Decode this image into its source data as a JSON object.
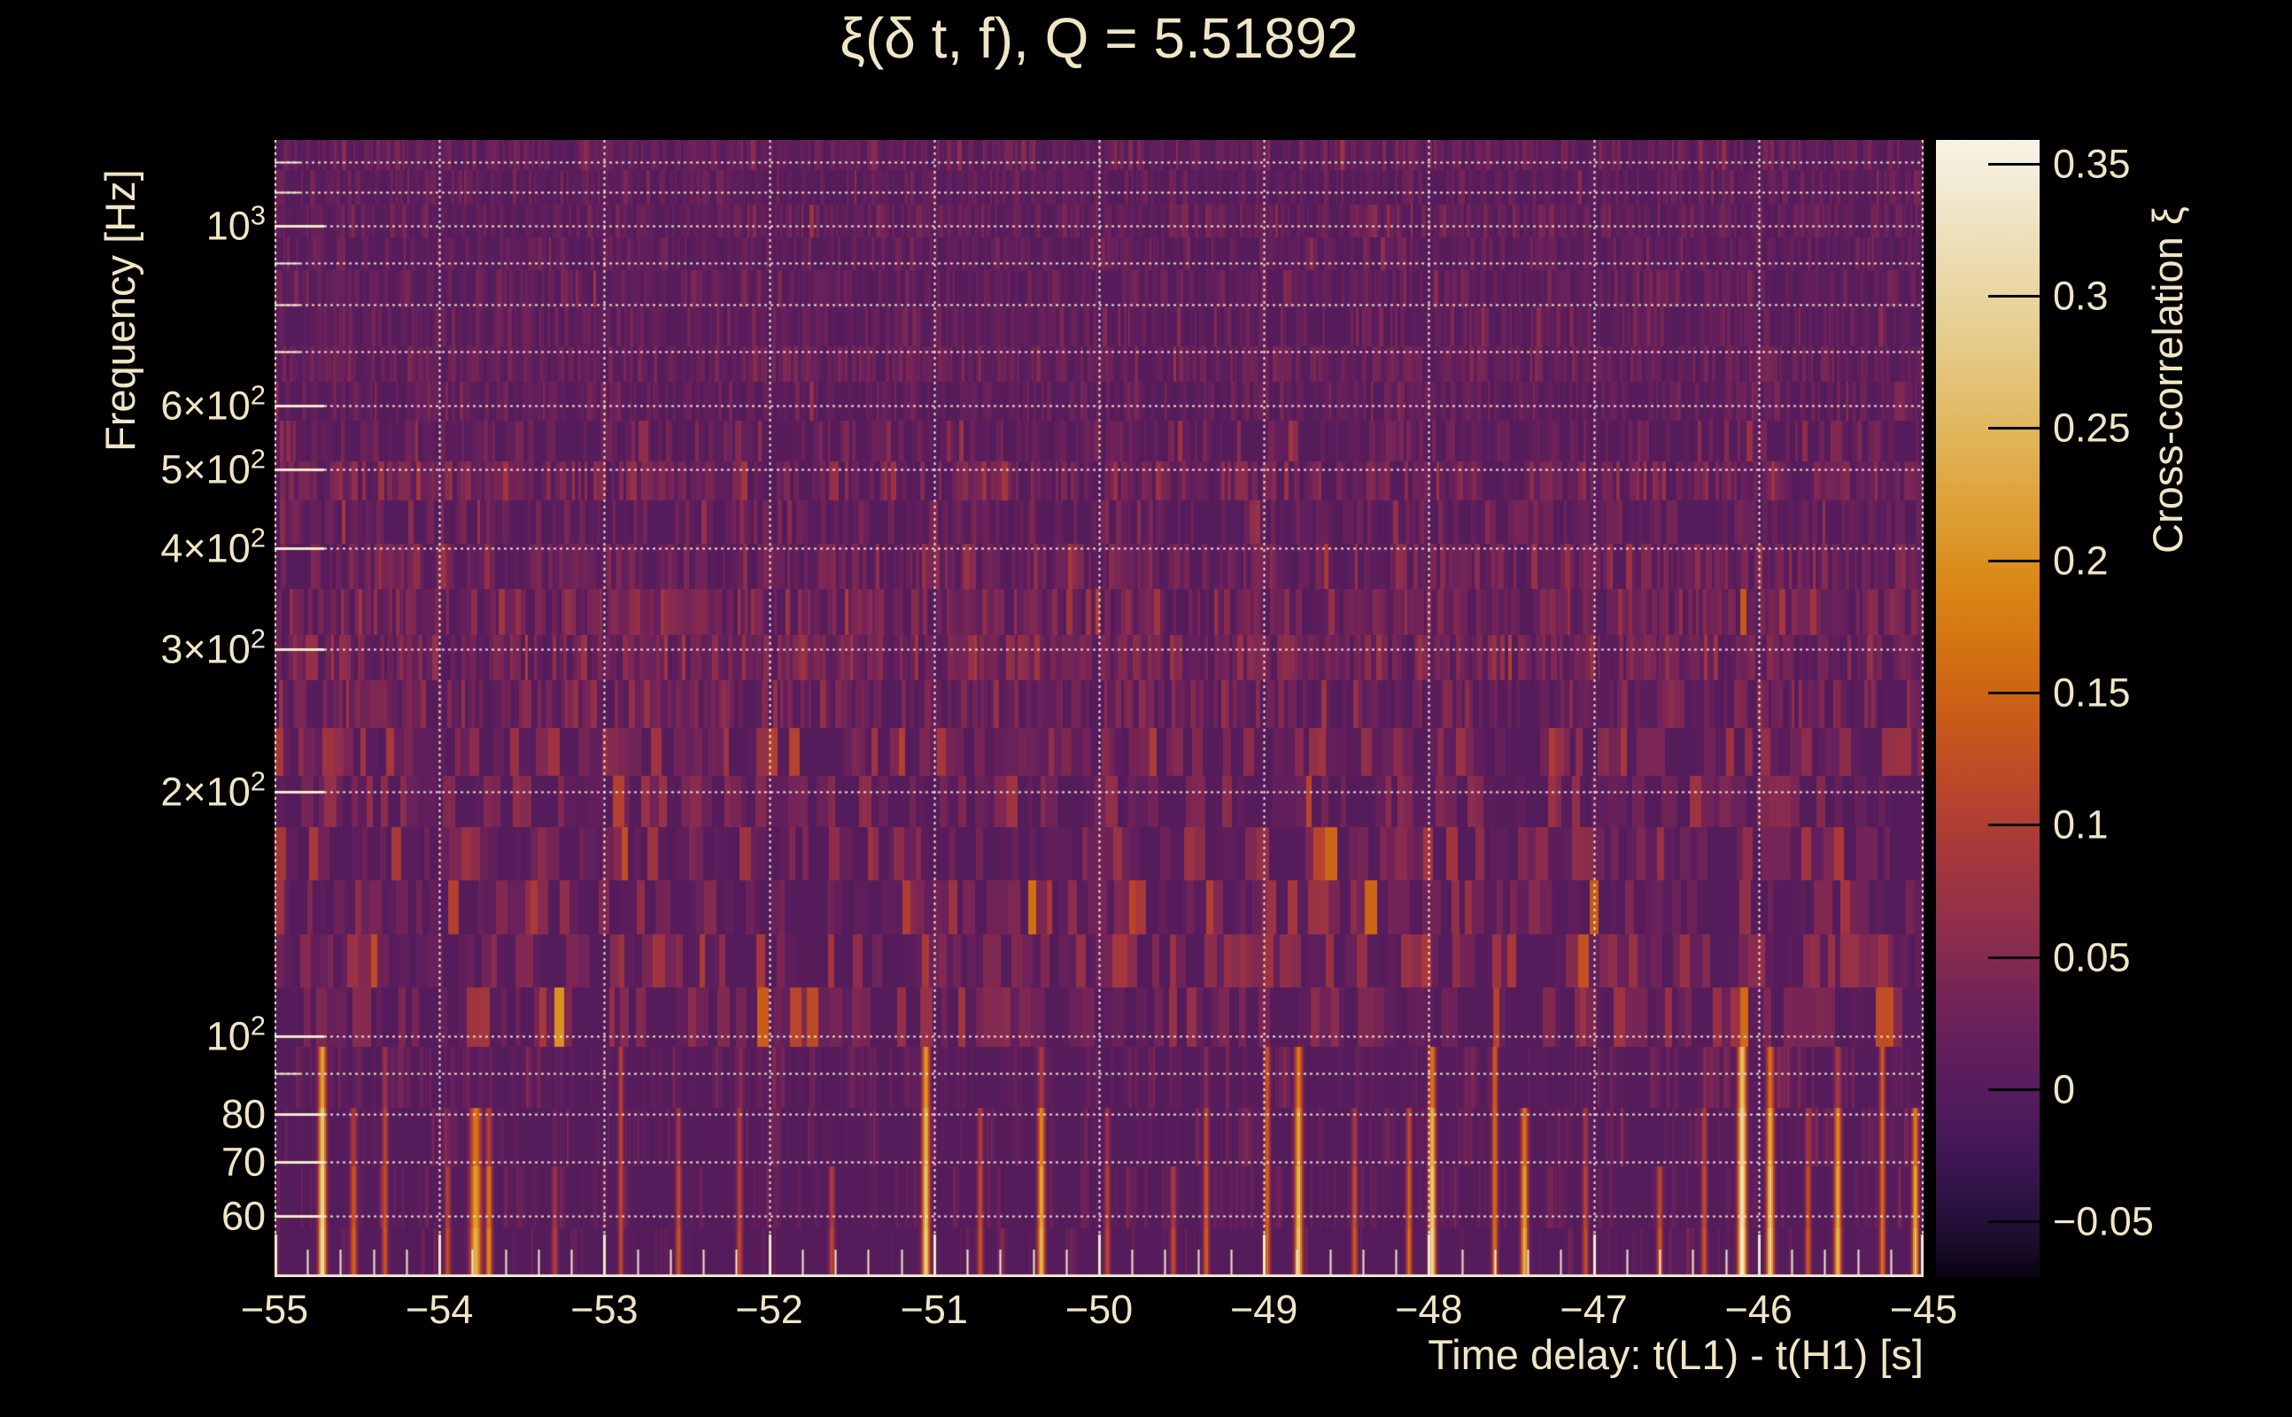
{
  "figure": {
    "background_color": "#000000",
    "text_color": "#f0e6c6",
    "grid_color": "#f5eed4",
    "axis_color": "#f2e8cc"
  },
  "chart_data": {
    "type": "heatmap",
    "title": "ξ(δ t, f), Q = 5.51892",
    "q_value": 5.51892,
    "xlabel": "Time delay: t(L1) - t(H1) [s]",
    "ylabel": "Frequency [Hz]",
    "colorbar_label": "Cross-correlation ξ",
    "x_range": [
      -55,
      -45
    ],
    "x_ticks": [
      {
        "t": -55,
        "label": "−55"
      },
      {
        "t": -54,
        "label": "−54"
      },
      {
        "t": -53,
        "label": "−53"
      },
      {
        "t": -52,
        "label": "−52"
      },
      {
        "t": -51,
        "label": "−51"
      },
      {
        "t": -50,
        "label": "−50"
      },
      {
        "t": -49,
        "label": "−49"
      },
      {
        "t": -48,
        "label": "−48"
      },
      {
        "t": -47,
        "label": "−47"
      },
      {
        "t": -46,
        "label": "−46"
      },
      {
        "t": -45,
        "label": "−45"
      }
    ],
    "x_minor_tick_step": 0.2,
    "y_scale": "log",
    "y_range_hz": [
      50.4,
      1277
    ],
    "y_ticks": [
      {
        "f": 1000,
        "prefix": "",
        "base": "10",
        "exp": "3"
      },
      {
        "f": 600,
        "prefix": "6×",
        "base": "10",
        "exp": "2"
      },
      {
        "f": 500,
        "prefix": "5×",
        "base": "10",
        "exp": "2"
      },
      {
        "f": 400,
        "prefix": "4×",
        "base": "10",
        "exp": "2"
      },
      {
        "f": 300,
        "prefix": "3×",
        "base": "10",
        "exp": "2"
      },
      {
        "f": 200,
        "prefix": "2×",
        "base": "10",
        "exp": "2"
      },
      {
        "f": 100,
        "prefix": "",
        "base": "10",
        "exp": "2"
      },
      {
        "f": 80,
        "prefix": "80",
        "base": "",
        "exp": ""
      },
      {
        "f": 70,
        "prefix": "70",
        "base": "",
        "exp": ""
      },
      {
        "f": 60,
        "prefix": "60",
        "base": "",
        "exp": ""
      }
    ],
    "y_minor_tick_freqs": [
      90,
      700,
      800,
      900,
      1100,
      1200
    ],
    "gridline_freqs": [
      60,
      70,
      80,
      90,
      100,
      200,
      300,
      400,
      500,
      600,
      700,
      800,
      900,
      1000,
      1100,
      1200
    ],
    "colorbar_range": [
      -0.071,
      0.359
    ],
    "colorbar_ticks": [
      {
        "v": 0.35,
        "label": "0.35"
      },
      {
        "v": 0.3,
        "label": "0.3"
      },
      {
        "v": 0.25,
        "label": "0.25"
      },
      {
        "v": 0.2,
        "label": "0.2"
      },
      {
        "v": 0.15,
        "label": "0.15"
      },
      {
        "v": 0.1,
        "label": "0.1"
      },
      {
        "v": 0.05,
        "label": "0.05"
      },
      {
        "v": 0.0,
        "label": "0"
      },
      {
        "v": -0.05,
        "label": "−0.05"
      }
    ],
    "colormap_stops": [
      [
        -0.071,
        "#0a0414"
      ],
      [
        -0.05,
        "#241039"
      ],
      [
        -0.03,
        "#3a1551"
      ],
      [
        -0.01,
        "#4e1a5b"
      ],
      [
        0.015,
        "#611f5c"
      ],
      [
        0.04,
        "#7a2655"
      ],
      [
        0.065,
        "#93304a"
      ],
      [
        0.09,
        "#a8383b"
      ],
      [
        0.115,
        "#bb472a"
      ],
      [
        0.14,
        "#ca5a19"
      ],
      [
        0.165,
        "#d37111"
      ],
      [
        0.19,
        "#da8717"
      ],
      [
        0.215,
        "#dd9c30"
      ],
      [
        0.24,
        "#e0b050"
      ],
      [
        0.265,
        "#e3c172"
      ],
      [
        0.29,
        "#e7d094"
      ],
      [
        0.315,
        "#ecdcb2"
      ],
      [
        0.34,
        "#f2e9d2"
      ],
      [
        0.359,
        "#f7f3e6"
      ]
    ],
    "bright_streaks": [
      [
        -54.71,
        0.34,
        105,
        0.016
      ],
      [
        -54.52,
        0.17,
        80,
        0.014
      ],
      [
        -54.33,
        0.15,
        95,
        0.012
      ],
      [
        -53.95,
        0.14,
        75,
        0.012
      ],
      [
        -53.78,
        0.26,
        85,
        0.024
      ],
      [
        -53.7,
        0.22,
        78,
        0.014
      ],
      [
        -53.3,
        0.12,
        70,
        0.012
      ],
      [
        -52.9,
        0.13,
        150,
        0.01
      ],
      [
        -52.55,
        0.15,
        80,
        0.012
      ],
      [
        -52.18,
        0.13,
        90,
        0.012
      ],
      [
        -51.62,
        0.13,
        75,
        0.012
      ],
      [
        -51.05,
        0.3,
        110,
        0.016
      ],
      [
        -50.72,
        0.15,
        85,
        0.012
      ],
      [
        -50.35,
        0.27,
        90,
        0.015
      ],
      [
        -49.95,
        0.13,
        80,
        0.012
      ],
      [
        -49.55,
        0.14,
        70,
        0.012
      ],
      [
        -49.35,
        0.16,
        90,
        0.012
      ],
      [
        -48.98,
        0.17,
        140,
        0.012
      ],
      [
        -48.79,
        0.29,
        100,
        0.016
      ],
      [
        -48.45,
        0.16,
        80,
        0.012
      ],
      [
        -48.12,
        0.18,
        85,
        0.012
      ],
      [
        -47.98,
        0.33,
        95,
        0.015
      ],
      [
        -47.6,
        0.18,
        150,
        0.012
      ],
      [
        -47.42,
        0.26,
        85,
        0.015
      ],
      [
        -47.05,
        0.14,
        80,
        0.012
      ],
      [
        -46.6,
        0.16,
        75,
        0.012
      ],
      [
        -46.33,
        0.15,
        85,
        0.012
      ],
      [
        -46.1,
        0.36,
        115,
        0.018
      ],
      [
        -45.93,
        0.31,
        95,
        0.016
      ],
      [
        -45.7,
        0.16,
        80,
        0.012
      ],
      [
        -45.52,
        0.27,
        90,
        0.015
      ],
      [
        -45.25,
        0.18,
        130,
        0.012
      ],
      [
        -45.05,
        0.28,
        85,
        0.013
      ]
    ],
    "texture_seed": 1337
  }
}
